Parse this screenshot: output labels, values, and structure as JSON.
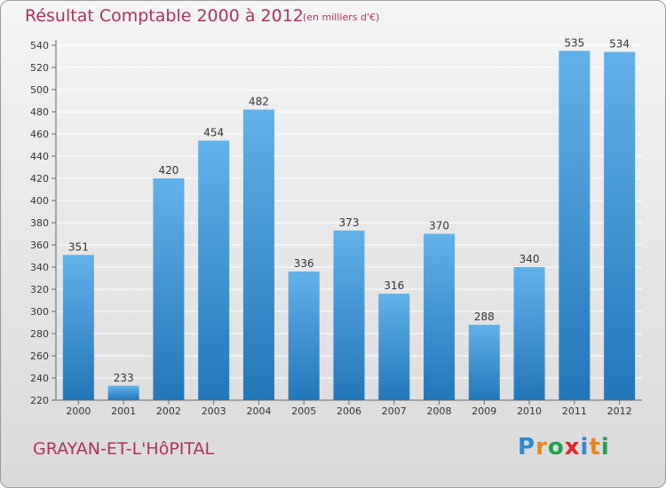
{
  "title": "Résultat Comptable 2000 à 2012",
  "subtitle": "(en milliers d'€)",
  "location": "GRAYAN-ET-L'HôPITAL",
  "logo": {
    "text": "Proxiti",
    "letter_colors": [
      "#2e8ad2",
      "#e8851c",
      "#1fa34a",
      "#e3262e",
      "#2e8ad2",
      "#e8851c",
      "#1fa34a"
    ]
  },
  "colors": {
    "accent": "#b03060",
    "bar_light": "#62b1ea",
    "bar_dark": "#2277b8",
    "text": "#333333",
    "grid": "#ffffff"
  },
  "chart_data": {
    "type": "bar",
    "categories": [
      "2000",
      "2001",
      "2002",
      "2003",
      "2004",
      "2005",
      "2006",
      "2007",
      "2008",
      "2009",
      "2010",
      "2011",
      "2012"
    ],
    "values": [
      351,
      233,
      420,
      454,
      482,
      336,
      373,
      316,
      370,
      288,
      340,
      535,
      534
    ],
    "ylim": [
      220,
      540
    ],
    "yticks": [
      220,
      240,
      260,
      280,
      300,
      320,
      340,
      360,
      380,
      400,
      420,
      440,
      460,
      480,
      500,
      520,
      540
    ],
    "grid": true,
    "xlabel": "",
    "ylabel": ""
  }
}
